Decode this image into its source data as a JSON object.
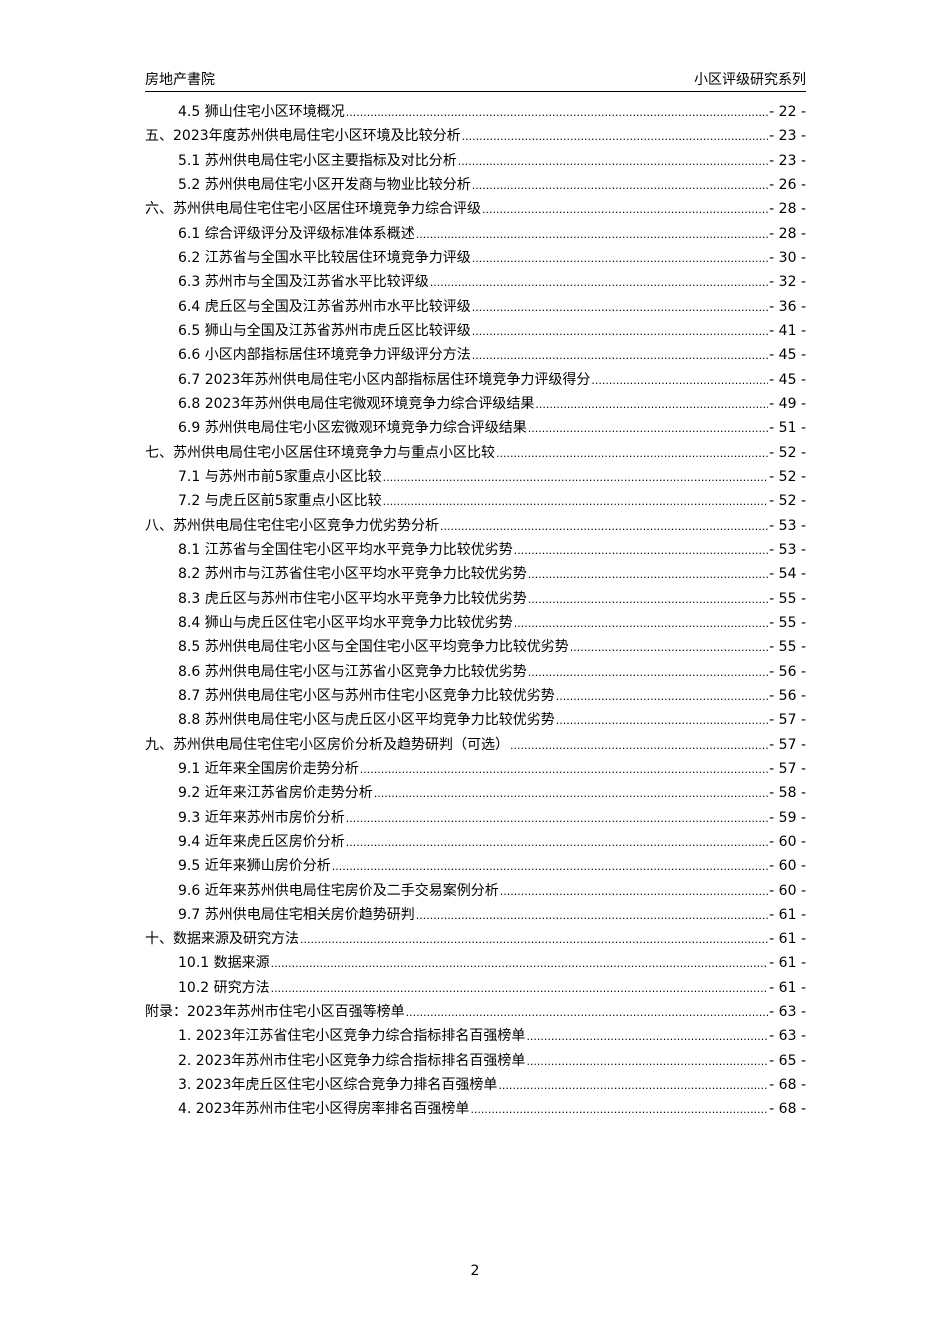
{
  "header": {
    "left": "房地产書院",
    "right": "小区评级研究系列"
  },
  "toc": [
    {
      "level": 2,
      "title": "4.5 狮山住宅小区环境概况",
      "page": "- 22 -"
    },
    {
      "level": 1,
      "title": "五、2023年度苏州供电局住宅小区环境及比较分析",
      "page": "- 23 -"
    },
    {
      "level": 2,
      "title": "5.1 苏州供电局住宅小区主要指标及对比分析",
      "page": "- 23 -"
    },
    {
      "level": 2,
      "title": "5.2 苏州供电局住宅小区开发商与物业比较分析",
      "page": "- 26 -"
    },
    {
      "level": 1,
      "title": "六、苏州供电局住宅住宅小区居住环境竞争力综合评级",
      "page": "- 28 -"
    },
    {
      "level": 2,
      "title": "6.1 综合评级评分及评级标准体系概述",
      "page": "- 28 -"
    },
    {
      "level": 2,
      "title": "6.2 江苏省与全国水平比较居住环境竞争力评级",
      "page": "- 30 -"
    },
    {
      "level": 2,
      "title": "6.3 苏州市与全国及江苏省水平比较评级",
      "page": "- 32 -"
    },
    {
      "level": 2,
      "title": "6.4 虎丘区与全国及江苏省苏州市水平比较评级",
      "page": "- 36 -"
    },
    {
      "level": 2,
      "title": "6.5 狮山与全国及江苏省苏州市虎丘区比较评级",
      "page": "- 41 -"
    },
    {
      "level": 2,
      "title": "6.6 小区内部指标居住环境竞争力评级评分方法",
      "page": "- 45 -"
    },
    {
      "level": 2,
      "title": "6.7 2023年苏州供电局住宅小区内部指标居住环境竞争力评级得分",
      "page": "- 45 -"
    },
    {
      "level": 2,
      "title": "6.8 2023年苏州供电局住宅微观环境竞争力综合评级结果",
      "page": "- 49 -"
    },
    {
      "level": 2,
      "title": "6.9 苏州供电局住宅小区宏微观环境竞争力综合评级结果",
      "page": "- 51 -"
    },
    {
      "level": 1,
      "title": "七、苏州供电局住宅小区居住环境竞争力与重点小区比较",
      "page": "- 52 -"
    },
    {
      "level": 2,
      "title": "7.1 与苏州市前5家重点小区比较",
      "page": "- 52 -"
    },
    {
      "level": 2,
      "title": "7.2 与虎丘区前5家重点小区比较",
      "page": "- 52 -"
    },
    {
      "level": 1,
      "title": "八、苏州供电局住宅住宅小区竞争力优劣势分析",
      "page": "- 53 -"
    },
    {
      "level": 2,
      "title": "8.1 江苏省与全国住宅小区平均水平竞争力比较优劣势",
      "page": "- 53 -"
    },
    {
      "level": 2,
      "title": "8.2 苏州市与江苏省住宅小区平均水平竞争力比较优劣势",
      "page": "- 54 -"
    },
    {
      "level": 2,
      "title": "8.3 虎丘区与苏州市住宅小区平均水平竞争力比较优劣势",
      "page": "- 55 -"
    },
    {
      "level": 2,
      "title": "8.4 狮山与虎丘区住宅小区平均水平竞争力比较优劣势",
      "page": "- 55 -"
    },
    {
      "level": 2,
      "title": "8.5 苏州供电局住宅小区与全国住宅小区平均竞争力比较优劣势",
      "page": "- 55 -"
    },
    {
      "level": 2,
      "title": "8.6 苏州供电局住宅小区与江苏省小区竞争力比较优劣势",
      "page": "- 56 -"
    },
    {
      "level": 2,
      "title": "8.7 苏州供电局住宅小区与苏州市住宅小区竞争力比较优劣势",
      "page": "- 56 -"
    },
    {
      "level": 2,
      "title": "8.8 苏州供电局住宅小区与虎丘区小区平均竞争力比较优劣势",
      "page": "- 57 -"
    },
    {
      "level": 1,
      "title": "九、苏州供电局住宅住宅小区房价分析及趋势研判（可选）",
      "page": "- 57 -"
    },
    {
      "level": 2,
      "title": "9.1 近年来全国房价走势分析",
      "page": "- 57 -"
    },
    {
      "level": 2,
      "title": "9.2 近年来江苏省房价走势分析",
      "page": "- 58 -"
    },
    {
      "level": 2,
      "title": "9.3 近年来苏州市房价分析",
      "page": "- 59 -"
    },
    {
      "level": 2,
      "title": "9.4 近年来虎丘区房价分析",
      "page": "- 60 -"
    },
    {
      "level": 2,
      "title": "9.5 近年来狮山房价分析",
      "page": "- 60 -"
    },
    {
      "level": 2,
      "title": "9.6 近年来苏州供电局住宅房价及二手交易案例分析",
      "page": "- 60 -"
    },
    {
      "level": 2,
      "title": "9.7 苏州供电局住宅相关房价趋势研判",
      "page": "- 61 -"
    },
    {
      "level": 1,
      "title": "十、数据来源及研究方法",
      "page": "- 61 -"
    },
    {
      "level": 2,
      "title": "10.1 数据来源",
      "page": "- 61 -"
    },
    {
      "level": 2,
      "title": "10.2 研究方法",
      "page": "- 61 -"
    },
    {
      "level": 1,
      "title": "附录：2023年苏州市住宅小区百强等榜单",
      "page": "- 63 -"
    },
    {
      "level": 2,
      "title": "1. 2023年江苏省住宅小区竞争力综合指标排名百强榜单",
      "page": "- 63 -"
    },
    {
      "level": 2,
      "title": "2. 2023年苏州市住宅小区竞争力综合指标排名百强榜单",
      "page": "- 65 -"
    },
    {
      "level": 2,
      "title": "3. 2023年虎丘区住宅小区综合竞争力排名百强榜单",
      "page": "- 68 -"
    },
    {
      "level": 2,
      "title": "4. 2023年苏州市住宅小区得房率排名百强榜单",
      "page": "- 68 -"
    }
  ],
  "footer": {
    "page_number": "2"
  }
}
